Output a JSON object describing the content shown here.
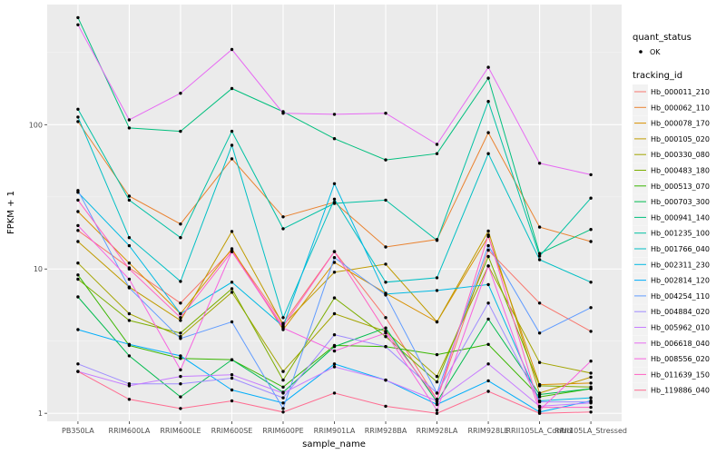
{
  "chart_data": {
    "type": "line",
    "xlabel": "sample_name",
    "ylabel": "FPKM + 1",
    "y_scale": "log10",
    "ylim": [
      0.88,
      680
    ],
    "y_ticks": [
      1,
      10,
      100
    ],
    "y_tick_labels": [
      "1",
      "10",
      "100"
    ],
    "grid": true,
    "legend_position": "right",
    "categories": [
      "PB350LA",
      "RRIM600LA",
      "RRIM600LE",
      "RRIM600SE",
      "RRIM600PE",
      "RRIM901LA",
      "RRIM928BA",
      "RRIM928LA",
      "RRIM928LE",
      "RRII105LA_Control",
      "RRII105LA_Stressed"
    ],
    "legend_shape": {
      "title": "quant_status",
      "items": [
        {
          "label": "OK"
        }
      ]
    },
    "legend_color_title": "tracking_id",
    "series": [
      {
        "name": "Hb_000011_210",
        "color": "#F8766D",
        "values": [
          18.5,
          10.2,
          5.8,
          13.5,
          4.2,
          13.2,
          4.6,
          1.25,
          13.5,
          5.8,
          3.7
        ]
      },
      {
        "name": "Hb_000062_110",
        "color": "#EA8331",
        "values": [
          105,
          32,
          20.5,
          58,
          23,
          29,
          14.2,
          16,
          88,
          19.5,
          15.5
        ]
      },
      {
        "name": "Hb_000078_170",
        "color": "#D89000",
        "values": [
          25,
          11,
          4.9,
          13.8,
          3.8,
          11.1,
          6.8,
          4.3,
          16.8,
          1.58,
          1.62
        ]
      },
      {
        "name": "Hb_000105_020",
        "color": "#C09B00",
        "values": [
          15.5,
          7.5,
          4.4,
          18.2,
          4.1,
          9.5,
          10.8,
          4.3,
          18.3,
          1.38,
          1.78
        ]
      },
      {
        "name": "Hb_000330_080",
        "color": "#A3A500",
        "values": [
          11,
          4.9,
          3.4,
          6.9,
          1.95,
          4.9,
          3.7,
          1.8,
          10.5,
          2.25,
          1.9
        ]
      },
      {
        "name": "Hb_000483_180",
        "color": "#7CAE00",
        "values": [
          8.5,
          4.4,
          3.6,
          7.3,
          1.7,
          6.3,
          3.4,
          1.65,
          12.2,
          1.55,
          1.52
        ]
      },
      {
        "name": "Hb_000513_070",
        "color": "#39B600",
        "values": [
          9.1,
          2.95,
          2.4,
          2.35,
          1.52,
          2.95,
          2.9,
          2.55,
          3.0,
          1.3,
          1.48
        ]
      },
      {
        "name": "Hb_000703_300",
        "color": "#00BB4E",
        "values": [
          6.4,
          2.5,
          1.3,
          2.35,
          1.4,
          2.9,
          3.9,
          1.2,
          4.5,
          1.35,
          1.48
        ]
      },
      {
        "name": "Hb_000941_140",
        "color": "#00BF7D",
        "values": [
          552,
          95,
          90,
          178,
          123,
          80,
          57,
          63,
          210,
          12.8,
          18.8
        ]
      },
      {
        "name": "Hb_001235_100",
        "color": "#00C1A3",
        "values": [
          128,
          30,
          16.5,
          90,
          19,
          28.5,
          30,
          15.8,
          145,
          12.3,
          31
        ]
      },
      {
        "name": "Hb_001766_040",
        "color": "#00BFC4",
        "values": [
          113,
          16.5,
          8.2,
          72,
          4.6,
          30.5,
          8.1,
          8.7,
          63,
          11.6,
          8.1
        ]
      },
      {
        "name": "Hb_002311_230",
        "color": "#00B9E3",
        "values": [
          34,
          14.5,
          4.9,
          8.1,
          4.0,
          39,
          6.7,
          7.1,
          7.8,
          1.22,
          1.28
        ]
      },
      {
        "name": "Hb_002814_120",
        "color": "#00ADFA",
        "values": [
          3.8,
          3.0,
          2.5,
          1.45,
          1.18,
          2.2,
          1.7,
          1.15,
          1.68,
          1.02,
          1.22
        ]
      },
      {
        "name": "Hb_004254_110",
        "color": "#619CFF",
        "values": [
          35,
          7.4,
          3.3,
          4.3,
          1.08,
          12,
          6.6,
          1.38,
          14.5,
          3.6,
          5.4
        ]
      },
      {
        "name": "Hb_004884_020",
        "color": "#9F8CFF",
        "values": [
          2.2,
          1.6,
          1.6,
          1.75,
          1.28,
          3.5,
          2.9,
          1.38,
          5.8,
          1.2,
          1.2
        ]
      },
      {
        "name": "Hb_005962_010",
        "color": "#C77CFF",
        "values": [
          1.95,
          1.55,
          1.8,
          1.85,
          1.38,
          2.1,
          1.7,
          1.22,
          2.2,
          1.12,
          1.18
        ]
      },
      {
        "name": "Hb_006618_040",
        "color": "#E76BF3",
        "values": [
          492,
          108,
          165,
          332,
          120,
          118,
          120,
          73,
          250,
          54,
          45
        ]
      },
      {
        "name": "Hb_008556_020",
        "color": "#F763E0",
        "values": [
          20,
          8.5,
          2.0,
          13.2,
          3.9,
          2.7,
          3.6,
          1.05,
          10.5,
          1.05,
          2.3
        ]
      },
      {
        "name": "Hb_011639_150",
        "color": "#FF61C3",
        "values": [
          30,
          10,
          4.6,
          13.2,
          4.0,
          13.2,
          3.7,
          1.25,
          17.2,
          1.1,
          1.1
        ]
      },
      {
        "name": "Hb_119886_040",
        "color": "#FF6C91",
        "values": [
          1.95,
          1.25,
          1.08,
          1.22,
          1.02,
          1.38,
          1.12,
          1.0,
          1.42,
          1.0,
          1.02
        ]
      }
    ]
  }
}
